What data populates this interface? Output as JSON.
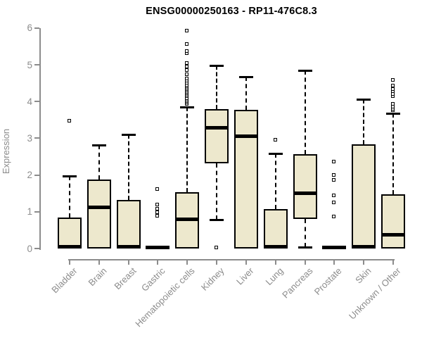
{
  "colors": {
    "box_fill": "#ede8cd",
    "box_stroke": "#000000",
    "axis": "#8c8c8c",
    "title": "#000000",
    "background": "#ffffff"
  },
  "chart_data": {
    "type": "boxplot",
    "title": "ENSG00000250163 - RP11-476C8.3",
    "xlabel": "",
    "ylabel": "Expression",
    "ylim": [
      0,
      6
    ],
    "yticks": [
      0,
      1,
      2,
      3,
      4,
      5,
      6
    ],
    "grid": "off",
    "legend": "none",
    "categories": [
      "Bladder",
      "Brain",
      "Breast",
      "Gastric",
      "Hematopoietic cells",
      "Kidney",
      "Liver",
      "Lung",
      "Pancreas",
      "Prostate",
      "Skin",
      "Unknown / Other"
    ],
    "series": [
      {
        "category": "Bladder",
        "whisker_low": 0,
        "q1": 0,
        "median": 0.04,
        "q3": 0.85,
        "whisker_high": 1.97,
        "outliers": [
          3.47
        ]
      },
      {
        "category": "Brain",
        "whisker_low": 0,
        "q1": 0,
        "median": 1.12,
        "q3": 1.87,
        "whisker_high": 2.82,
        "outliers": []
      },
      {
        "category": "Breast",
        "whisker_low": 0,
        "q1": 0,
        "median": 0.04,
        "q3": 1.32,
        "whisker_high": 3.1,
        "outliers": []
      },
      {
        "category": "Gastric",
        "whisker_low": 0,
        "q1": 0,
        "median": 0.02,
        "q3": 0.05,
        "whisker_high": 0.05,
        "outliers": [
          0.89,
          0.98,
          1.07,
          1.19,
          1.6
        ]
      },
      {
        "category": "Hematopoietic cells",
        "whisker_low": 0,
        "q1": 0,
        "median": 0.8,
        "q3": 1.54,
        "whisker_high": 3.85,
        "outliers": [
          3.93,
          3.97,
          4.01,
          4.05,
          4.09,
          4.13,
          4.17,
          4.21,
          4.25,
          4.29,
          4.33,
          4.37,
          4.41,
          4.45,
          4.5,
          4.55,
          4.62,
          4.73,
          4.85,
          4.95,
          5.03,
          5.3,
          5.37,
          5.55,
          5.92
        ]
      },
      {
        "category": "Kidney",
        "whisker_low": 0.78,
        "q1": 2.32,
        "median": 3.28,
        "q3": 3.8,
        "whisker_high": 4.98,
        "outliers": [
          0.02
        ]
      },
      {
        "category": "Liver",
        "whisker_low": 0,
        "q1": 0,
        "median": 3.06,
        "q3": 3.77,
        "whisker_high": 4.67,
        "outliers": []
      },
      {
        "category": "Lung",
        "whisker_low": 0,
        "q1": 0,
        "median": 0.04,
        "q3": 1.08,
        "whisker_high": 2.59,
        "outliers": [
          2.95
        ]
      },
      {
        "category": "Pancreas",
        "whisker_low": 0.03,
        "q1": 0.8,
        "median": 1.5,
        "q3": 2.57,
        "whisker_high": 4.85,
        "outliers": []
      },
      {
        "category": "Prostate",
        "whisker_low": 0,
        "q1": 0,
        "median": 0.02,
        "q3": 0.05,
        "whisker_high": 0.05,
        "outliers": [
          0.87,
          1.25,
          1.43,
          1.86,
          2.0,
          2.35
        ]
      },
      {
        "category": "Skin",
        "whisker_low": 0,
        "q1": 0,
        "median": 0.04,
        "q3": 2.83,
        "whisker_high": 4.07,
        "outliers": []
      },
      {
        "category": "Unknown / Other",
        "whisker_low": 0,
        "q1": 0,
        "median": 0.38,
        "q3": 1.47,
        "whisker_high": 3.68,
        "outliers": [
          3.75,
          3.8,
          3.86,
          3.93,
          4.13,
          4.2,
          4.27,
          4.33,
          4.42,
          4.57
        ]
      }
    ]
  }
}
